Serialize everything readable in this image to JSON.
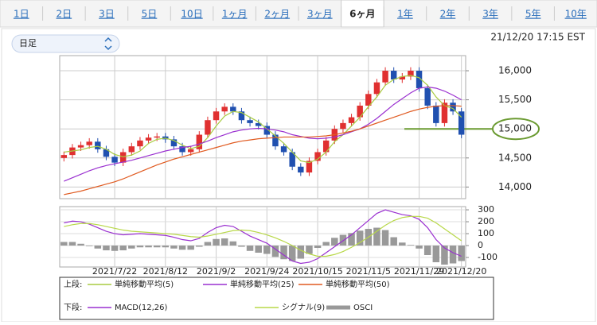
{
  "tabs": [
    "1日",
    "2日",
    "3日",
    "5日",
    "10日",
    "1ヶ月",
    "2ヶ月",
    "3ヶ月",
    "6ヶ月",
    "1年",
    "2年",
    "3年",
    "5年",
    "10年"
  ],
  "selected_tab": 8,
  "period_select": "日足",
  "timestamp": "21/12/20 17:15 EST",
  "chart_data": [
    {
      "type": "candlestick",
      "group_label": "上段:",
      "categories": [
        null,
        null,
        null,
        null,
        null,
        null,
        "2021/7/22",
        null,
        null,
        null,
        null,
        null,
        "2021/8/12",
        null,
        null,
        null,
        null,
        null,
        "2021/9/2",
        null,
        null,
        null,
        null,
        null,
        "2021/9/24",
        null,
        null,
        null,
        null,
        null,
        "2021/10/15",
        null,
        null,
        null,
        null,
        null,
        "2021/11/5",
        null,
        null,
        null,
        null,
        null,
        "2021/11/29",
        null,
        null,
        null,
        null,
        "2021/12/20"
      ],
      "open": [
        14500,
        14550,
        14680,
        14720,
        14780,
        14650,
        14520,
        14420,
        14600,
        14700,
        14800,
        14850,
        14870,
        14820,
        14700,
        14600,
        14650,
        14900,
        15150,
        15300,
        15380,
        15300,
        15150,
        15100,
        15050,
        14900,
        14700,
        14600,
        14350,
        14250,
        14450,
        14600,
        14800,
        15000,
        15100,
        15200,
        15400,
        15600,
        15800,
        16000,
        15850,
        15900,
        16000,
        15700,
        15400,
        15100,
        15450,
        15300
      ],
      "high": [
        14610,
        14740,
        14780,
        14840,
        14840,
        14710,
        14580,
        14660,
        14760,
        14860,
        14910,
        14930,
        14930,
        14880,
        14760,
        14710,
        14960,
        15210,
        15360,
        15440,
        15440,
        15360,
        15210,
        15160,
        15110,
        14960,
        14760,
        14660,
        14410,
        14510,
        14660,
        14860,
        15060,
        15160,
        15260,
        15460,
        15660,
        15860,
        16060,
        16060,
        15960,
        16060,
        16060,
        15760,
        15460,
        15510,
        15510,
        15360
      ],
      "low": [
        14440,
        14490,
        14620,
        14660,
        14590,
        14460,
        14360,
        14360,
        14540,
        14640,
        14740,
        14790,
        14760,
        14640,
        14540,
        14540,
        14590,
        14840,
        15090,
        15240,
        15240,
        15090,
        15040,
        14990,
        14840,
        14640,
        14540,
        14290,
        14190,
        14190,
        14390,
        14540,
        14740,
        14940,
        15040,
        15140,
        15340,
        15540,
        15740,
        15790,
        15790,
        15840,
        15640,
        15340,
        15040,
        15040,
        15240,
        14840
      ],
      "close": [
        14550,
        14680,
        14720,
        14780,
        14650,
        14520,
        14420,
        14600,
        14700,
        14800,
        14850,
        14870,
        14820,
        14700,
        14600,
        14650,
        14900,
        15150,
        15300,
        15380,
        15300,
        15150,
        15100,
        15050,
        14900,
        14700,
        14600,
        14350,
        14250,
        14450,
        14600,
        14800,
        15000,
        15100,
        15200,
        15400,
        15600,
        15800,
        16000,
        15850,
        15900,
        16000,
        15700,
        15400,
        15100,
        15450,
        15300,
        14900
      ],
      "up_color": "#e03030",
      "down_color": "#2050b0",
      "series": [
        {
          "name": "単純移動平均(5)",
          "color": "#a8cc40",
          "values": [
            14600,
            14620,
            14640,
            14680,
            14700,
            14650,
            14560,
            14520,
            14550,
            14620,
            14750,
            14820,
            14840,
            14800,
            14720,
            14660,
            14700,
            14850,
            15050,
            15220,
            15300,
            15280,
            15200,
            15120,
            15000,
            14880,
            14750,
            14600,
            14450,
            14420,
            14480,
            14600,
            14780,
            14900,
            15050,
            15200,
            15380,
            15550,
            15750,
            15850,
            15900,
            15920,
            15880,
            15750,
            15550,
            15400,
            15350,
            15200
          ]
        },
        {
          "name": "単純移動平均(25)",
          "color": "#9a30d0",
          "values": [
            14100,
            14160,
            14220,
            14280,
            14330,
            14370,
            14400,
            14430,
            14460,
            14500,
            14540,
            14580,
            14620,
            14650,
            14680,
            14700,
            14740,
            14790,
            14850,
            14900,
            14950,
            14980,
            15000,
            15010,
            15000,
            14980,
            14950,
            14900,
            14870,
            14840,
            14830,
            14840,
            14860,
            14900,
            14950,
            15000,
            15080,
            15180,
            15300,
            15420,
            15520,
            15620,
            15700,
            15720,
            15700,
            15650,
            15580,
            15500
          ]
        },
        {
          "name": "単純移動平均(50)",
          "color": "#e05a20",
          "values": [
            13870,
            13900,
            13930,
            13970,
            14010,
            14050,
            14090,
            14140,
            14200,
            14260,
            14320,
            14380,
            14430,
            14480,
            14520,
            14560,
            14600,
            14640,
            14680,
            14720,
            14760,
            14790,
            14810,
            14830,
            14840,
            14850,
            14860,
            14860,
            14860,
            14860,
            14870,
            14880,
            14900,
            14930,
            14960,
            15000,
            15050,
            15100,
            15150,
            15200,
            15250,
            15300,
            15340,
            15370,
            15390,
            15400,
            15400,
            15390
          ]
        }
      ],
      "ylim": [
        13800,
        16260
      ],
      "yticks": [
        {
          "value": 14000,
          "label": "14,000"
        },
        {
          "value": 14500,
          "label": "14,500"
        },
        {
          "value": 15000,
          "label": "15,000"
        },
        {
          "value": 15500,
          "label": "15,500"
        },
        {
          "value": 16000,
          "label": "16,000"
        }
      ],
      "highlight_tick": 2,
      "grid": true
    },
    {
      "type": "macd",
      "group_label": "下段:",
      "series": [
        {
          "name": "MACD(12,26)",
          "color": "#9a30d0",
          "kind": "line",
          "values": [
            190,
            205,
            200,
            180,
            150,
            120,
            100,
            90,
            95,
            100,
            95,
            90,
            85,
            70,
            50,
            40,
            60,
            110,
            150,
            170,
            160,
            120,
            80,
            50,
            20,
            -30,
            -80,
            -130,
            -150,
            -140,
            -110,
            -60,
            -10,
            40,
            90,
            150,
            210,
            270,
            300,
            280,
            260,
            250,
            220,
            150,
            50,
            -20,
            -60,
            -90
          ]
        },
        {
          "name": "シグナル(9)",
          "color": "#b8d848",
          "kind": "line",
          "values": [
            160,
            175,
            185,
            185,
            175,
            160,
            145,
            130,
            120,
            115,
            110,
            105,
            100,
            95,
            85,
            75,
            70,
            80,
            95,
            110,
            125,
            130,
            125,
            110,
            90,
            65,
            35,
            0,
            -40,
            -70,
            -90,
            -90,
            -75,
            -50,
            -15,
            25,
            70,
            120,
            170,
            210,
            235,
            245,
            245,
            230,
            190,
            140,
            90,
            40
          ]
        },
        {
          "name": "OSCI",
          "color": "#999999",
          "kind": "bar",
          "values": [
            30,
            30,
            15,
            -5,
            -25,
            -40,
            -45,
            -40,
            -25,
            -15,
            -15,
            -15,
            -15,
            -25,
            -35,
            -35,
            -10,
            30,
            55,
            60,
            35,
            -10,
            -45,
            -60,
            -70,
            -95,
            -115,
            -130,
            -110,
            -70,
            -20,
            30,
            65,
            90,
            105,
            125,
            140,
            150,
            130,
            70,
            25,
            5,
            -25,
            -80,
            -140,
            -160,
            -150,
            -130
          ]
        }
      ],
      "ylim": [
        -180,
        327
      ],
      "yticks": [
        -100,
        0,
        100,
        200,
        300
      ],
      "grid": true
    }
  ]
}
